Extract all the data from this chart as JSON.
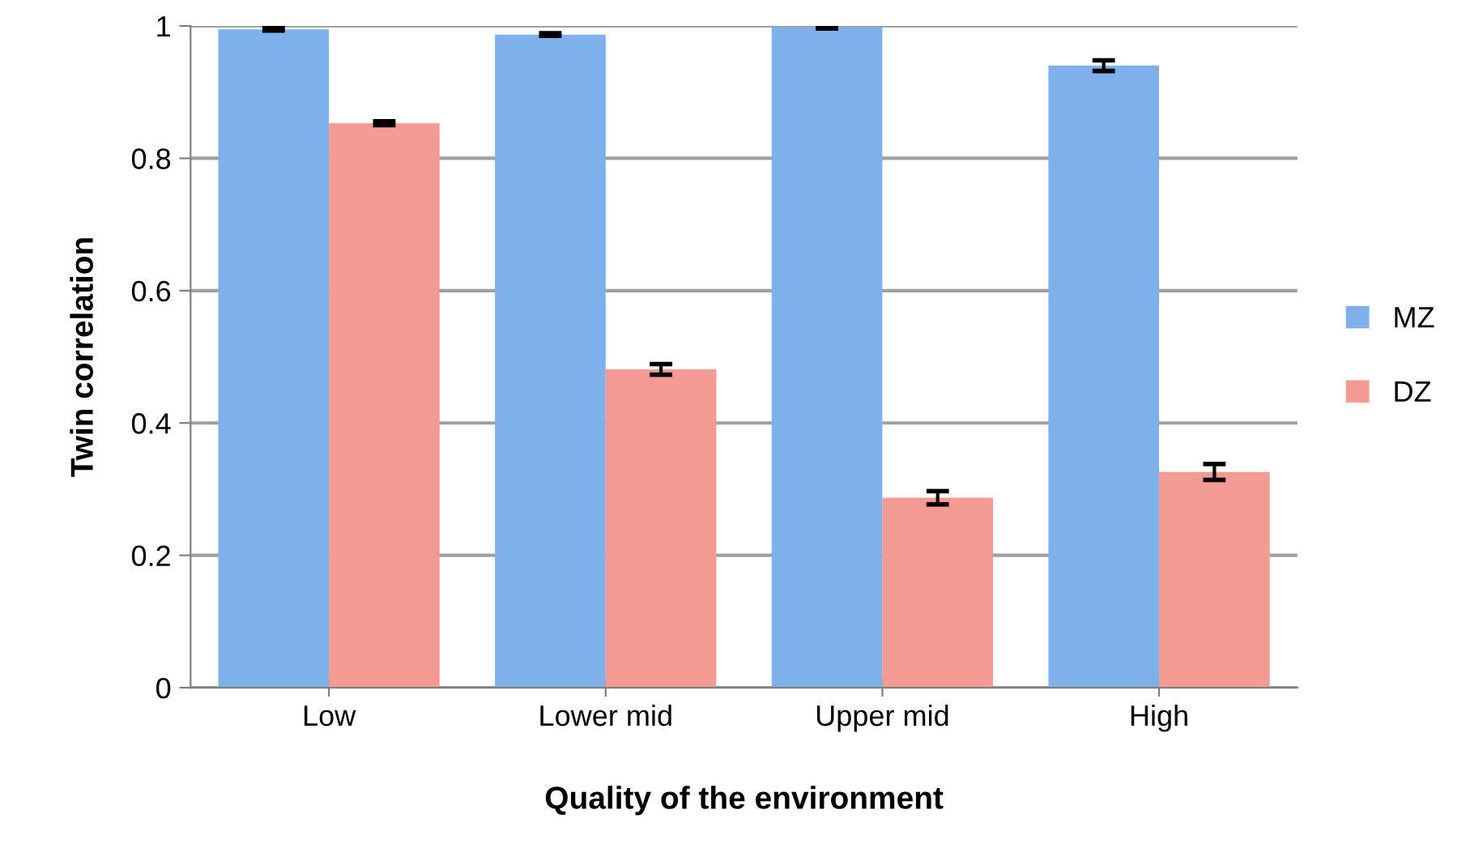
{
  "chart_data": {
    "type": "bar",
    "xlabel": "Quality of the environment",
    "ylabel": "Twin correlation",
    "categories": [
      "Low",
      "Lower mid",
      "Upper mid",
      "High"
    ],
    "series": [
      {
        "name": "MZ",
        "color": "#7eb0ec",
        "values": [
          0.995,
          0.987,
          0.998,
          0.94
        ],
        "errors": [
          0.002,
          0.002,
          0.002,
          0.008
        ]
      },
      {
        "name": "DZ",
        "color": "#f39a93",
        "values": [
          0.853,
          0.481,
          0.287,
          0.326
        ],
        "errors": [
          0.003,
          0.008,
          0.01,
          0.012
        ]
      }
    ],
    "ylim": [
      0,
      1
    ],
    "yticks": [
      0,
      0.2,
      0.4,
      0.6,
      0.8,
      1
    ],
    "grid": "y",
    "legend": "right"
  }
}
